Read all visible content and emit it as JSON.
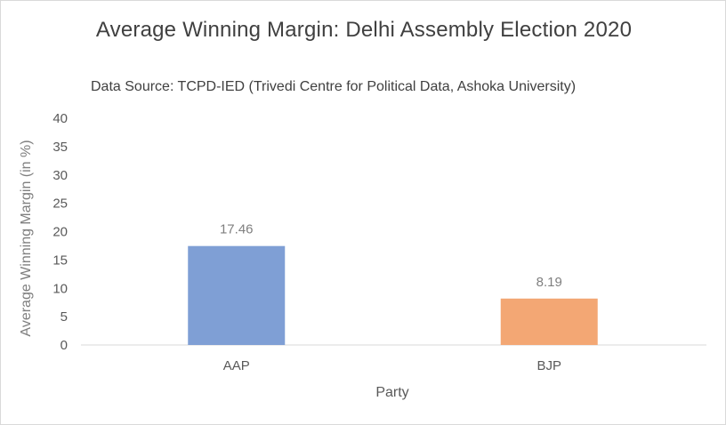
{
  "chart_data": {
    "type": "bar",
    "title": "Average Winning Margin: Delhi Assembly Election 2020",
    "subtitle": "Data Source: TCPD-IED (Trivedi Centre for Political Data, Ashoka University)",
    "xlabel": "Party",
    "ylabel": "Average Winning Margin (in %)",
    "categories": [
      "AAP",
      "BJP"
    ],
    "values": [
      17.46,
      8.19
    ],
    "data_labels": [
      "17.46",
      "8.19"
    ],
    "colors": [
      "#7f9fd5",
      "#f3a774"
    ],
    "ylim": [
      0,
      40
    ],
    "yticks": [
      0,
      5,
      10,
      15,
      20,
      25,
      30,
      35,
      40
    ],
    "grid": false,
    "legend": "none"
  }
}
